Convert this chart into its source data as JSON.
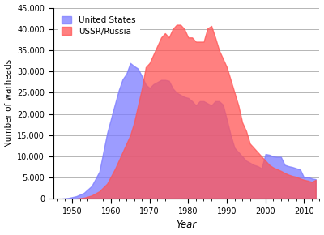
{
  "years_us": [
    1945,
    1947,
    1949,
    1951,
    1953,
    1955,
    1957,
    1959,
    1961,
    1962,
    1963,
    1964,
    1965,
    1966,
    1967,
    1968,
    1969,
    1970,
    1971,
    1972,
    1973,
    1974,
    1975,
    1976,
    1977,
    1978,
    1979,
    1980,
    1981,
    1982,
    1983,
    1984,
    1985,
    1986,
    1987,
    1988,
    1989,
    1990,
    1991,
    1992,
    1993,
    1994,
    1995,
    1996,
    1997,
    1998,
    1999,
    2000,
    2001,
    2002,
    2003,
    2004,
    2005,
    2006,
    2007,
    2008,
    2009,
    2010,
    2011,
    2012,
    2013
  ],
  "values_us": [
    6,
    32,
    235,
    640,
    1436,
    3057,
    6444,
    15468,
    22229,
    25540,
    28133,
    29463,
    31982,
    31255,
    30663,
    28884,
    26910,
    26119,
    27000,
    27500,
    28000,
    28000,
    27826,
    26000,
    25000,
    24500,
    24000,
    23764,
    23000,
    22000,
    23000,
    23000,
    22500,
    22000,
    23000,
    23000,
    22174,
    18638,
    15000,
    12000,
    11000,
    10000,
    9000,
    8500,
    8000,
    7700,
    7200,
    10577,
    10400,
    10000,
    9900,
    9900,
    8000,
    7700,
    7500,
    7200,
    6900,
    5000,
    5200,
    4804,
    4650
  ],
  "years_ussr": [
    1945,
    1947,
    1949,
    1951,
    1953,
    1955,
    1957,
    1959,
    1961,
    1962,
    1963,
    1964,
    1965,
    1966,
    1967,
    1968,
    1969,
    1970,
    1971,
    1972,
    1973,
    1974,
    1975,
    1976,
    1977,
    1978,
    1979,
    1980,
    1981,
    1982,
    1983,
    1984,
    1985,
    1986,
    1987,
    1988,
    1989,
    1990,
    1991,
    1992,
    1993,
    1994,
    1995,
    1996,
    1997,
    1998,
    1999,
    2000,
    2001,
    2002,
    2003,
    2004,
    2005,
    2006,
    2007,
    2008,
    2009,
    2010,
    2011,
    2012,
    2013
  ],
  "values_ussr": [
    1,
    2,
    10,
    50,
    300,
    800,
    1800,
    3600,
    7000,
    9000,
    11000,
    13000,
    15000,
    18000,
    22000,
    26000,
    31000,
    32000,
    34000,
    36000,
    38000,
    39000,
    38000,
    40000,
    41000,
    41000,
    40000,
    38000,
    38000,
    37000,
    37000,
    37000,
    40159,
    40723,
    38000,
    35000,
    33000,
    31000,
    28000,
    25000,
    22000,
    18000,
    16000,
    13000,
    12000,
    11000,
    10000,
    9000,
    8000,
    7400,
    7000,
    6600,
    6100,
    5700,
    5400,
    5200,
    4800,
    4500,
    4300,
    4000,
    4500
  ],
  "color_us": "#7b7bff",
  "color_ussr": "#ff5555",
  "alpha_us": 0.75,
  "alpha_ussr": 0.75,
  "xlabel": "Year",
  "ylabel": "Number of warheads",
  "ylim": [
    0,
    45000
  ],
  "xlim": [
    1945,
    2014
  ],
  "yticks": [
    0,
    5000,
    10000,
    15000,
    20000,
    25000,
    30000,
    35000,
    40000,
    45000
  ],
  "xticks": [
    1950,
    1960,
    1970,
    1980,
    1990,
    2000,
    2010
  ],
  "legend_us": "United States",
  "legend_ussr": "USSR/Russia",
  "background_color": "#ffffff",
  "grid_color": "#aaaaaa"
}
